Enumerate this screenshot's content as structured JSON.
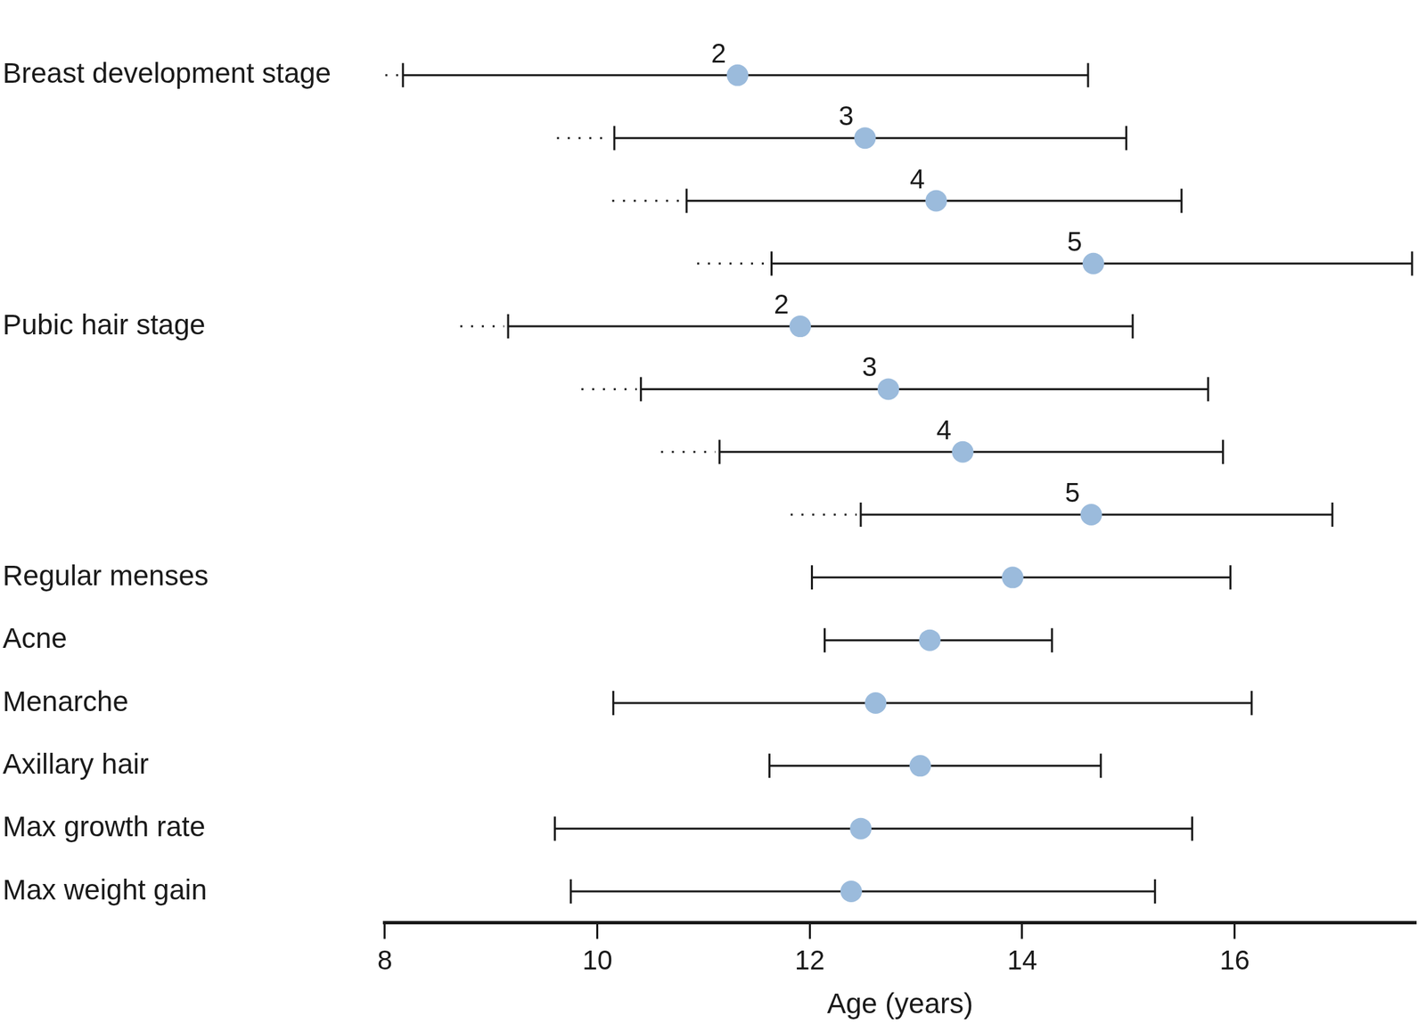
{
  "chart_data": {
    "type": "range",
    "x_label": "Age (years)",
    "categories": [
      "Breast development stage",
      null,
      null,
      null,
      "Pubic hair stage",
      null,
      null,
      null,
      "Regular menses",
      "Acne",
      "Menarche",
      "Axillary hair",
      "Max growth rate",
      "Max weight gain"
    ],
    "point_labels": [
      "2",
      "3",
      "4",
      "5",
      "2",
      "3",
      "4",
      "5",
      null,
      null,
      null,
      null,
      null,
      null
    ],
    "low": [
      8.17,
      10.16,
      10.84,
      11.64,
      9.16,
      10.41,
      11.15,
      12.48,
      12.02,
      12.14,
      10.15,
      11.62,
      9.6,
      9.75
    ],
    "median": [
      11.32,
      12.52,
      13.19,
      14.67,
      11.91,
      12.74,
      13.44,
      14.65,
      13.91,
      13.13,
      12.62,
      13.04,
      12.48,
      12.39
    ],
    "high": [
      14.62,
      14.98,
      15.5,
      17.67,
      15.04,
      15.75,
      15.89,
      16.92,
      15.96,
      14.28,
      16.16,
      14.74,
      15.6,
      15.25
    ],
    "dotted_from": [
      7.7,
      9.62,
      10.14,
      10.94,
      8.71,
      9.85,
      10.6,
      11.82,
      null,
      null,
      null,
      null,
      null,
      null
    ],
    "color": "#9bbbdc",
    "xlim": [
      8,
      17.7
    ],
    "xticks": [
      8,
      10,
      12,
      14,
      16
    ],
    "grid": false
  }
}
